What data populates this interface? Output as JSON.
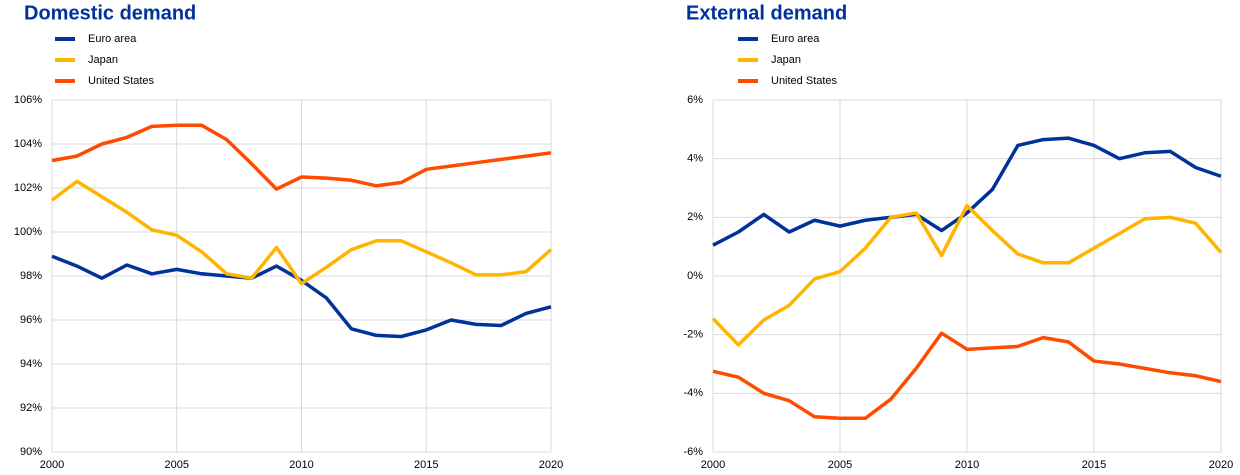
{
  "chart_data": [
    {
      "type": "line",
      "title": "Domestic demand",
      "x": [
        2000,
        2001,
        2002,
        2003,
        2004,
        2005,
        2006,
        2007,
        2008,
        2009,
        2010,
        2011,
        2012,
        2013,
        2014,
        2015,
        2016,
        2017,
        2018,
        2019,
        2020
      ],
      "series": [
        {
          "name": "Euro area",
          "color": "#003299",
          "values": [
            98.9,
            98.45,
            97.9,
            98.5,
            98.1,
            98.3,
            98.1,
            98.0,
            97.9,
            98.45,
            97.8,
            97.0,
            95.6,
            95.3,
            95.25,
            95.55,
            96.0,
            95.8,
            95.75,
            96.3,
            96.6
          ]
        },
        {
          "name": "Japan",
          "color": "#ffb400",
          "values": [
            101.45,
            102.3,
            101.6,
            100.9,
            100.1,
            99.85,
            99.1,
            98.1,
            97.9,
            99.3,
            97.65,
            98.4,
            99.2,
            99.6,
            99.6,
            99.1,
            98.6,
            98.05,
            98.05,
            98.2,
            99.2
          ]
        },
        {
          "name": "United States",
          "color": "#ff4b00",
          "values": [
            103.25,
            103.45,
            104.0,
            104.3,
            104.8,
            104.85,
            104.85,
            104.2,
            103.1,
            101.95,
            102.5,
            102.45,
            102.35,
            102.1,
            102.25,
            102.85,
            103.0,
            103.15,
            103.3,
            103.45,
            103.6
          ]
        }
      ],
      "xlim": [
        2000,
        2020
      ],
      "xticks": [
        2000,
        2005,
        2010,
        2015,
        2020
      ],
      "ylim": [
        90,
        106
      ],
      "yticks": [
        {
          "value": 90,
          "label": "90%"
        },
        {
          "value": 92,
          "label": "92%"
        },
        {
          "value": 94,
          "label": "94%"
        },
        {
          "value": 96,
          "label": "96%"
        },
        {
          "value": 98,
          "label": "98%"
        },
        {
          "value": 100,
          "label": "100%"
        },
        {
          "value": 102,
          "label": "102%"
        },
        {
          "value": 104,
          "label": "104%"
        },
        {
          "value": 106,
          "label": "106%"
        }
      ],
      "grid": true
    },
    {
      "type": "line",
      "title": "External demand",
      "x": [
        2000,
        2001,
        2002,
        2003,
        2004,
        2005,
        2006,
        2007,
        2008,
        2009,
        2010,
        2011,
        2012,
        2013,
        2014,
        2015,
        2016,
        2017,
        2018,
        2019,
        2020
      ],
      "series": [
        {
          "name": "Euro area",
          "color": "#003299",
          "values": [
            1.05,
            1.5,
            2.1,
            1.5,
            1.9,
            1.7,
            1.9,
            2.0,
            2.1,
            1.55,
            2.15,
            2.95,
            4.45,
            4.65,
            4.7,
            4.45,
            4.0,
            4.2,
            4.25,
            3.7,
            3.4
          ]
        },
        {
          "name": "Japan",
          "color": "#ffb400",
          "values": [
            -1.45,
            -2.35,
            -1.5,
            -1.0,
            -0.1,
            0.15,
            0.95,
            2.0,
            2.15,
            0.7,
            2.4,
            1.55,
            0.75,
            0.45,
            0.45,
            0.95,
            1.45,
            1.95,
            2.0,
            1.8,
            0.8
          ]
        },
        {
          "name": "United States",
          "color": "#ff4b00",
          "values": [
            -3.25,
            -3.45,
            -4.0,
            -4.25,
            -4.8,
            -4.85,
            -4.85,
            -4.2,
            -3.15,
            -1.95,
            -2.5,
            -2.45,
            -2.4,
            -2.1,
            -2.25,
            -2.9,
            -3.0,
            -3.15,
            -3.3,
            -3.4,
            -3.6
          ]
        }
      ],
      "xlim": [
        2000,
        2020
      ],
      "xticks": [
        2000,
        2005,
        2010,
        2015,
        2020
      ],
      "ylim": [
        -6,
        6
      ],
      "yticks": [
        {
          "value": -6,
          "label": "-6%"
        },
        {
          "value": -4,
          "label": "-4%"
        },
        {
          "value": -2,
          "label": "-2%"
        },
        {
          "value": 0,
          "label": "0%"
        },
        {
          "value": 2,
          "label": "2%"
        },
        {
          "value": 4,
          "label": "4%"
        },
        {
          "value": 6,
          "label": "6%"
        }
      ],
      "grid": true
    }
  ]
}
